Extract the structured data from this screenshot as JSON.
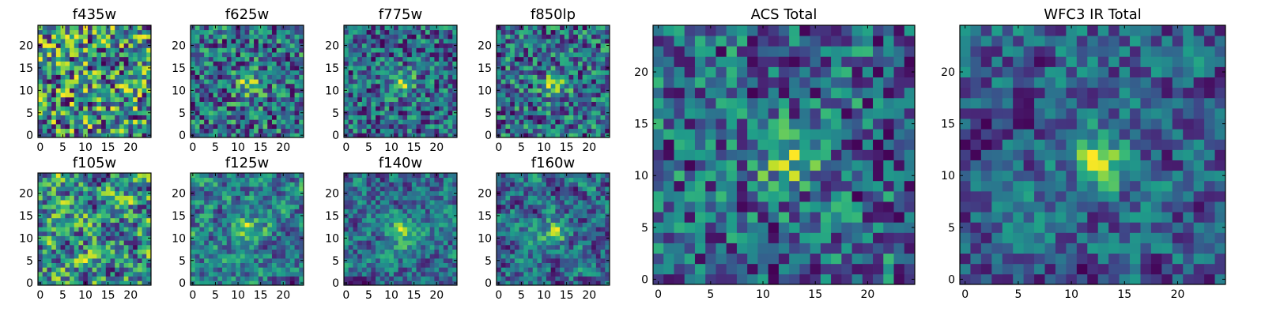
{
  "colormap": "viridis",
  "colormap_stops": [
    "#440154",
    "#482878",
    "#3e4989",
    "#31688e",
    "#26828e",
    "#1f9e89",
    "#35b779",
    "#6ece58",
    "#b5de2b",
    "#fde725"
  ],
  "chart_data": [
    {
      "type": "heatmap",
      "title": "f435w",
      "grid": [
        25,
        25
      ],
      "xlim": [
        -0.5,
        24.5
      ],
      "ylim": [
        -0.5,
        24.5
      ],
      "xticks": [
        0,
        5,
        10,
        15,
        20
      ],
      "yticks": [
        0,
        5,
        10,
        15,
        20
      ],
      "pattern": "noise",
      "seed": 11
    },
    {
      "type": "heatmap",
      "title": "f625w",
      "grid": [
        25,
        25
      ],
      "xlim": [
        -0.5,
        24.5
      ],
      "ylim": [
        -0.5,
        24.5
      ],
      "xticks": [
        0,
        5,
        10,
        15,
        20
      ],
      "yticks": [
        0,
        5,
        10,
        15,
        20
      ],
      "pattern": "noise_with_central_source",
      "seed": 23
    },
    {
      "type": "heatmap",
      "title": "f775w",
      "grid": [
        25,
        25
      ],
      "xlim": [
        -0.5,
        24.5
      ],
      "ylim": [
        -0.5,
        24.5
      ],
      "xticks": [
        0,
        5,
        10,
        15,
        20
      ],
      "yticks": [
        0,
        5,
        10,
        15,
        20
      ],
      "pattern": "noise_with_central_source",
      "seed": 37
    },
    {
      "type": "heatmap",
      "title": "f850lp",
      "grid": [
        25,
        25
      ],
      "xlim": [
        -0.5,
        24.5
      ],
      "ylim": [
        -0.5,
        24.5
      ],
      "xticks": [
        0,
        5,
        10,
        15,
        20
      ],
      "yticks": [
        0,
        5,
        10,
        15,
        20
      ],
      "pattern": "noise_with_central_source",
      "seed": 41
    },
    {
      "type": "heatmap",
      "title": "ACS Total",
      "grid": [
        25,
        25
      ],
      "xlim": [
        -0.5,
        24.5
      ],
      "ylim": [
        -0.5,
        24.5
      ],
      "xticks": [
        0,
        5,
        10,
        15,
        20
      ],
      "yticks": [
        0,
        5,
        10,
        15,
        20
      ],
      "pattern": "noise_with_central_source",
      "seed": 53
    },
    {
      "type": "heatmap",
      "title": "WFC3 IR Total",
      "grid": [
        25,
        25
      ],
      "xlim": [
        -0.5,
        24.5
      ],
      "ylim": [
        -0.5,
        24.5
      ],
      "xticks": [
        0,
        5,
        10,
        15,
        20
      ],
      "yticks": [
        0,
        5,
        10,
        15,
        20
      ],
      "pattern": "smooth_with_central_source",
      "seed": 67
    },
    {
      "type": "heatmap",
      "title": "f105w",
      "grid": [
        25,
        25
      ],
      "xlim": [
        -0.5,
        24.5
      ],
      "ylim": [
        -0.5,
        24.5
      ],
      "xticks": [
        0,
        5,
        10,
        15,
        20
      ],
      "yticks": [
        0,
        5,
        10,
        15,
        20
      ],
      "pattern": "smooth_noise",
      "seed": 71
    },
    {
      "type": "heatmap",
      "title": "f125w",
      "grid": [
        25,
        25
      ],
      "xlim": [
        -0.5,
        24.5
      ],
      "ylim": [
        -0.5,
        24.5
      ],
      "xticks": [
        0,
        5,
        10,
        15,
        20
      ],
      "yticks": [
        0,
        5,
        10,
        15,
        20
      ],
      "pattern": "smooth_with_central_source",
      "seed": 83
    },
    {
      "type": "heatmap",
      "title": "f140w",
      "grid": [
        25,
        25
      ],
      "xlim": [
        -0.5,
        24.5
      ],
      "ylim": [
        -0.5,
        24.5
      ],
      "xticks": [
        0,
        5,
        10,
        15,
        20
      ],
      "yticks": [
        0,
        5,
        10,
        15,
        20
      ],
      "pattern": "smooth_with_central_source",
      "seed": 97
    },
    {
      "type": "heatmap",
      "title": "f160w",
      "grid": [
        25,
        25
      ],
      "xlim": [
        -0.5,
        24.5
      ],
      "ylim": [
        -0.5,
        24.5
      ],
      "xticks": [
        0,
        5,
        10,
        15,
        20
      ],
      "yticks": [
        0,
        5,
        10,
        15,
        20
      ],
      "pattern": "smooth_with_central_source",
      "seed": 101
    }
  ]
}
